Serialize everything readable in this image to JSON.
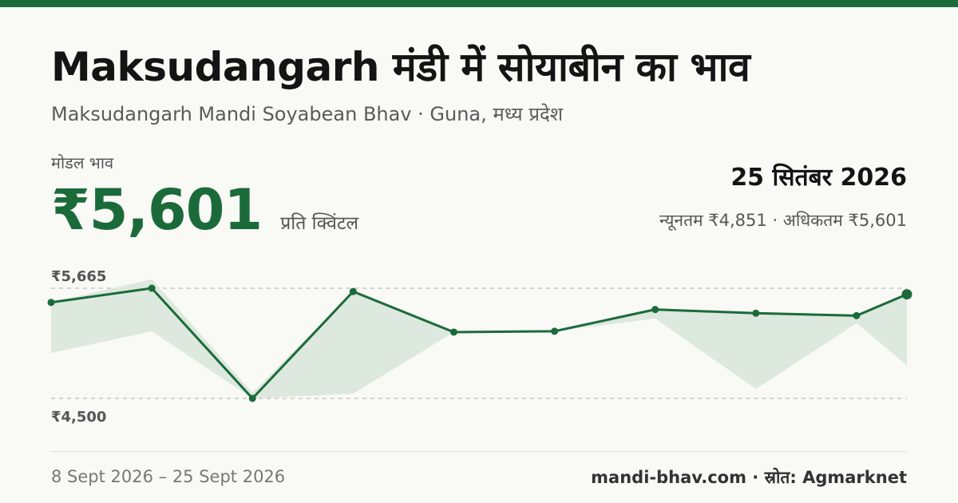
{
  "colors": {
    "accent": "#1b6b3a",
    "band": "#dde8de",
    "gridline": "#bdbdbd"
  },
  "header": {
    "title": "Maksudangarh मंडी में सोयाबीन का भाव",
    "subtitle": "Maksudangarh Mandi Soyabean Bhav · Guna, मध्य प्रदेश"
  },
  "summary": {
    "modal_label": "मोडल भाव",
    "price": "₹5,601",
    "price_unit": "प्रति क्विंटल",
    "date": "25 सितंबर 2026",
    "range_text": "न्यूनतम ₹4,851 · अधिकतम ₹5,601"
  },
  "chart_data": {
    "type": "line",
    "ylim": [
      4500,
      5665
    ],
    "ytick_labels": [
      "₹5,665",
      "₹4,500"
    ],
    "x": [
      "2026-09-08",
      "2026-09-10",
      "2026-09-12",
      "2026-09-14",
      "2026-09-16",
      "2026-09-18",
      "2026-09-20",
      "2026-09-22",
      "2026-09-24",
      "2026-09-25"
    ],
    "series": [
      {
        "values": [
          5515,
          5665,
          4500,
          5630,
          5201,
          5210,
          5440,
          5401,
          5375,
          5601
        ]
      }
    ],
    "band_min": [
      4980,
      5210,
      4500,
      4550,
      5201,
      5210,
      5345,
      4600,
      5295,
      4851
    ],
    "band_max": [
      5515,
      5760,
      4560,
      5630,
      5201,
      5210,
      5440,
      5401,
      5375,
      5601
    ],
    "grid": true
  },
  "footer": {
    "period": "8 Sept 2026 – 25 Sept 2026",
    "source": "mandi-bhav.com · स्रोत: Agmarknet"
  }
}
